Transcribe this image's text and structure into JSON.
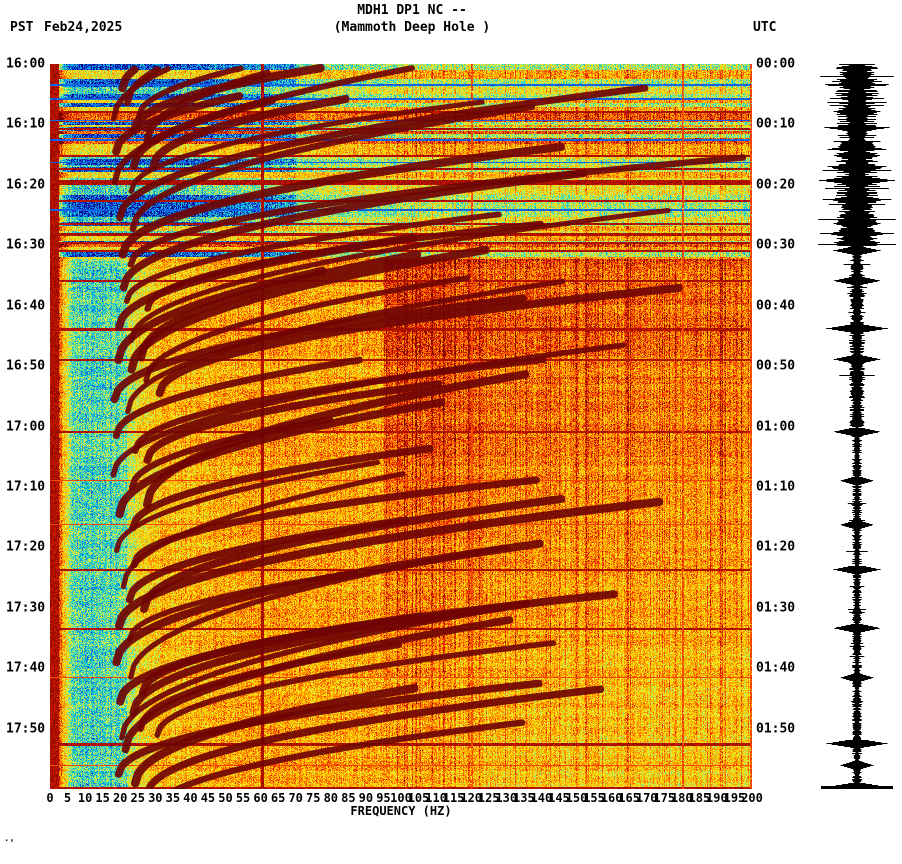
{
  "header": {
    "tz_left": "PST",
    "date": "Feb24,2025",
    "title_line1": "MDH1 DP1 NC --",
    "title_line2": "(Mammoth Deep Hole )",
    "tz_right": "UTC"
  },
  "axes": {
    "x_label": "FREQUENCY (HZ)",
    "x_tick_labels": [
      "0",
      "5",
      "10",
      "15",
      "20",
      "25",
      "30",
      "35",
      "40",
      "45",
      "50",
      "55",
      "60",
      "65",
      "70",
      "75",
      "80",
      "85",
      "90",
      "95",
      "100",
      "105",
      "110",
      "115",
      "120",
      "125",
      "130",
      "135",
      "140",
      "145",
      "150",
      "155",
      "160",
      "165",
      "170",
      "175",
      "180",
      "185",
      "190",
      "195",
      "200"
    ],
    "y_left_labels": [
      "16:00",
      "16:10",
      "16:20",
      "16:30",
      "16:40",
      "16:50",
      "17:00",
      "17:10",
      "17:20",
      "17:30",
      "17:40",
      "17:50"
    ],
    "y_right_labels": [
      "00:00",
      "00:10",
      "00:20",
      "00:30",
      "00:40",
      "00:50",
      "01:00",
      "01:10",
      "01:20",
      "01:30",
      "01:40",
      "01:50"
    ]
  },
  "footer": {
    "corner_mark": ".,"
  },
  "chart_data": {
    "type": "heatmap",
    "title": "MDH1 DP1 NC -- (Mammoth Deep Hole )",
    "station": "MDH1 DP1 NC",
    "station_description": "Mammoth Deep Hole",
    "xlabel": "FREQUENCY (HZ)",
    "freq_range_hz": [
      0,
      200
    ],
    "x_tick_step_hz": 5,
    "time_axis": {
      "left_zone": "PST",
      "right_zone": "UTC",
      "date": "Feb24,2025",
      "start_pst": "16:00",
      "end_pst": "18:00",
      "start_utc": "00:00",
      "end_utc": "02:00",
      "tick_step_min": 10,
      "duration_min": 120
    },
    "colormap": {
      "low": "#0a0a8c",
      "blue": "#1450eb",
      "cyan": "#00becd",
      "mid": "#ffe100",
      "orange": "#ffaa00",
      "red": "#e11e00",
      "max": "#730000"
    },
    "powerline_harmonics_hz": [
      60,
      120,
      180,
      199.5
    ],
    "event_lines_min": [
      [
        7.8,
        2
      ],
      [
        10.6,
        2
      ],
      [
        15.1,
        2
      ],
      [
        17.2,
        2
      ],
      [
        19.2,
        4
      ],
      [
        22.5,
        2
      ],
      [
        26.3,
        2
      ],
      [
        28.0,
        3
      ],
      [
        29.5,
        2
      ],
      [
        30.8,
        2
      ],
      [
        35.8,
        2
      ],
      [
        43.7,
        3
      ],
      [
        48.8,
        2
      ],
      [
        60.8,
        2
      ],
      [
        68.9,
        1
      ],
      [
        76.2,
        1
      ],
      [
        83.6,
        2
      ],
      [
        93.3,
        2
      ],
      [
        101.5,
        1
      ],
      [
        112.4,
        3
      ],
      [
        116.0,
        1
      ],
      [
        119.6,
        3
      ]
    ],
    "calibration_blue_lines_min": [
      [
        3.3,
        2
      ],
      [
        5.6,
        2
      ],
      [
        9.3,
        1
      ],
      [
        12.4,
        2
      ],
      [
        16.2,
        1
      ],
      [
        24.0,
        2
      ]
    ],
    "tremor_arc_start_min": [
      4,
      9,
      14.5,
      19.5,
      25.5,
      31.5,
      37,
      43.5,
      49,
      55.5,
      61.5,
      68,
      74.5,
      80.5,
      86.5,
      93,
      99,
      105.5,
      111.5,
      117.5
    ],
    "arc_start_freq_hz": 20,
    "low_freq_cyan_band_hz": [
      3,
      22
    ],
    "description": "Seismic spectrogram: repeating upward-sweeping dark-red harmonic arcs from ~20 Hz toward 150 Hz, cyan low-frequency band below ~22 Hz, dark red vertical line at 60 Hz (weaker at 120/180 Hz), horizontal broadband event lines, banded blue/red rows during first ~30 minutes; right strip is the matching seismogram trace."
  },
  "seismogram": {
    "trace_color": "#000000"
  }
}
